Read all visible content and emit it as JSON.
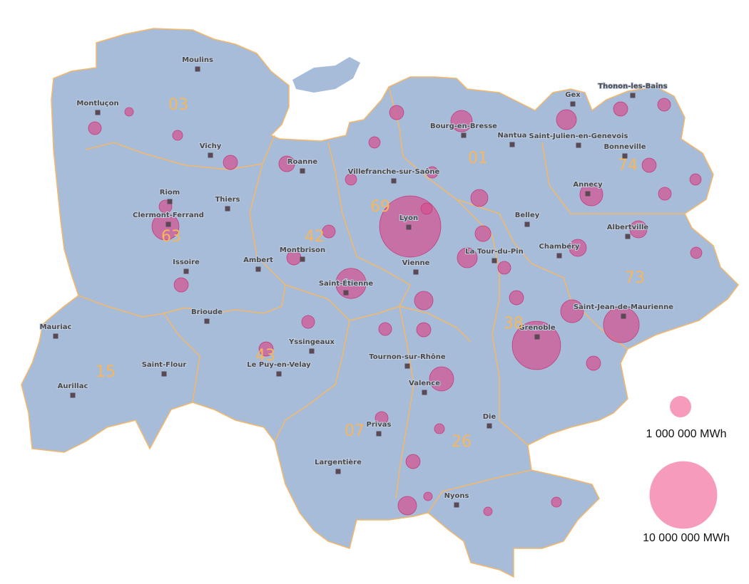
{
  "cities": [
    "Moulins",
    "Montluçon",
    "Vichy",
    "Riom",
    "Clermont-Ferrand",
    "Thiers",
    "Issoire",
    "Ambert",
    "Montbrison",
    "Roanne",
    "Villefranche-sur-Saône",
    "Bourg-en-Bresse",
    "Nantua",
    "Gex",
    "Thonon-les-Bains",
    "Saint-Julien-en-Genevois",
    "Bonneville",
    "Annecy",
    "Lyon",
    "Belley",
    "La Tour-du-Pin",
    "Chambéry",
    "Albertville",
    "Vienne",
    "Saint-Étienne",
    "Saint-Jean-de-Maurienne",
    "Grenoble",
    "Brioude",
    "Mauriac",
    "Aurillac",
    "Saint-Flour",
    "Yssingeaux",
    "Le Puy-en-Velay",
    "Tournon-sur-Rhône",
    "Valence",
    "Privas",
    "Die",
    "Largentière",
    "Nyons"
  ],
  "department_numbers": [
    "03",
    "01",
    "74",
    "69",
    "63",
    "42",
    "73",
    "38",
    "43",
    "15",
    "07",
    "26"
  ],
  "bubbles": [
    8200000,
    5100000,
    1600000,
    2000000,
    2800000,
    1000000,
    870000,
    1140000,
    1280000,
    1140000,
    870000,
    750000,
    640000,
    540000,
    640000,
    640000,
    750000,
    540000,
    440000,
    440000,
    360000,
    440000,
    440000,
    360000,
    360000,
    440000,
    440000,
    440000,
    360000,
    360000,
    440000,
    440000,
    440000,
    440000,
    360000,
    360000,
    360000,
    360000,
    220000,
    160000,
    280000,
    280000,
    220000,
    160000,
    160000,
    220000,
    280000,
    280000,
    280000,
    280000
  ],
  "legend": {
    "items": [
      {
        "value": 1000000,
        "label": "1 000 000 MWh"
      },
      {
        "value": 10000000,
        "label": "10 000 000 MWh"
      }
    ]
  }
}
